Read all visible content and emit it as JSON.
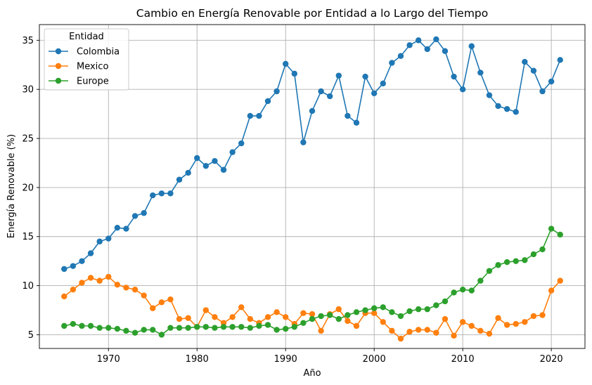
{
  "chart_data": {
    "type": "line",
    "title": "Cambio en Energía Renovable por Entidad a lo Largo del Tiempo",
    "xlabel": "Año",
    "ylabel": "Energía Renovable (%)",
    "xlim": [
      1962.2,
      2023.8
    ],
    "ylim": [
      3.6,
      36.6
    ],
    "xticks": [
      1970,
      1980,
      1990,
      2000,
      2010,
      2020
    ],
    "yticks": [
      5,
      10,
      15,
      20,
      25,
      30,
      35
    ],
    "grid": true,
    "legend_title": "Entidad",
    "legend_position": "top-left",
    "x": [
      1965,
      1966,
      1967,
      1968,
      1969,
      1970,
      1971,
      1972,
      1973,
      1974,
      1975,
      1976,
      1977,
      1978,
      1979,
      1980,
      1981,
      1982,
      1983,
      1984,
      1985,
      1986,
      1987,
      1988,
      1989,
      1990,
      1991,
      1992,
      1993,
      1994,
      1995,
      1996,
      1997,
      1998,
      1999,
      2000,
      2001,
      2002,
      2003,
      2004,
      2005,
      2006,
      2007,
      2008,
      2009,
      2010,
      2011,
      2012,
      2013,
      2014,
      2015,
      2016,
      2017,
      2018,
      2019,
      2020,
      2021
    ],
    "series": [
      {
        "name": "Colombia",
        "color": "#1f77b4",
        "values": [
          11.7,
          12.0,
          12.5,
          13.3,
          14.5,
          14.8,
          15.9,
          15.8,
          17.1,
          17.4,
          19.2,
          19.4,
          19.4,
          20.8,
          21.5,
          23.0,
          22.2,
          22.7,
          21.8,
          23.6,
          24.5,
          27.3,
          27.3,
          28.8,
          29.8,
          32.6,
          31.6,
          24.6,
          27.8,
          29.8,
          29.3,
          31.4,
          27.3,
          26.6,
          31.3,
          29.6,
          30.6,
          32.7,
          33.4,
          34.5,
          35.0,
          34.1,
          35.1,
          33.9,
          31.3,
          30.0,
          34.4,
          31.7,
          29.4,
          28.3,
          28.0,
          27.7,
          32.8,
          31.9,
          29.8,
          30.8,
          33.0
        ]
      },
      {
        "name": "Mexico",
        "color": "#ff7f0e",
        "values": [
          8.9,
          9.6,
          10.3,
          10.8,
          10.5,
          10.9,
          10.1,
          9.8,
          9.6,
          9.0,
          7.7,
          8.3,
          8.6,
          6.6,
          6.7,
          5.8,
          7.5,
          6.8,
          6.2,
          6.8,
          7.8,
          6.6,
          6.2,
          6.8,
          7.3,
          6.8,
          6.1,
          7.2,
          7.1,
          5.4,
          7.1,
          7.6,
          6.4,
          5.9,
          7.2,
          7.2,
          6.3,
          5.4,
          4.6,
          5.3,
          5.5,
          5.5,
          5.2,
          6.6,
          4.9,
          6.3,
          5.9,
          5.4,
          5.1,
          6.7,
          6.0,
          6.1,
          6.3,
          6.9,
          7.0,
          9.5,
          10.5
        ]
      },
      {
        "name": "Europe",
        "color": "#2ca02c",
        "values": [
          5.9,
          6.1,
          5.9,
          5.9,
          5.7,
          5.7,
          5.6,
          5.4,
          5.2,
          5.5,
          5.5,
          5.0,
          5.7,
          5.7,
          5.7,
          5.8,
          5.8,
          5.7,
          5.8,
          5.8,
          5.8,
          5.7,
          5.9,
          6.0,
          5.5,
          5.6,
          5.8,
          6.2,
          6.6,
          6.9,
          7.0,
          6.6,
          7.0,
          7.3,
          7.5,
          7.7,
          7.8,
          7.3,
          6.9,
          7.4,
          7.6,
          7.6,
          8.0,
          8.4,
          9.3,
          9.6,
          9.5,
          10.5,
          11.5,
          12.1,
          12.4,
          12.5,
          12.6,
          13.2,
          13.7,
          15.8,
          15.2
        ]
      }
    ]
  }
}
